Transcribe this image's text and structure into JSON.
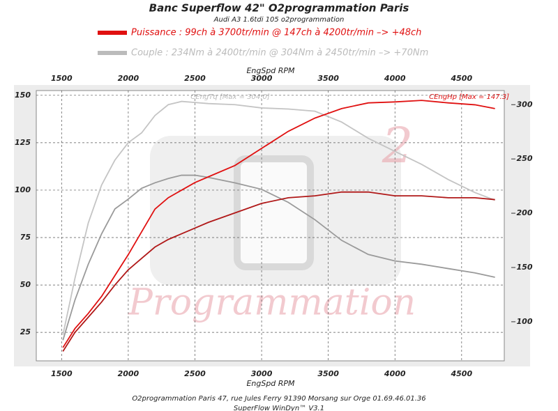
{
  "chart_data": {
    "type": "line",
    "title": "Banc Superflow 42\" O2programmation Paris",
    "subtitle": "Audi A3 1.6tdi 105 o2programmation",
    "legend": [
      {
        "text": "Puissance : 99ch à 3700tr/min @ 147ch à 4200tr/min  –> +48ch",
        "color": "#e01010"
      },
      {
        "text": "Couple :  234Nm à 2400tr/min @ 304Nm à 2450tr/min –> +70Nm",
        "color": "#bbbbbb"
      }
    ],
    "x_label": "EngSpd RPM",
    "annotations": [
      "CEngHp [Max = 147.3]",
      "CEngTq [Max = 304.0]"
    ],
    "watermark": "Programmation",
    "watermark_logo": "2",
    "footer": [
      "O2programmation Paris 47, rue Jules Ferry 91390 Morsang sur Orge 01.69.46.01.36",
      "SuperFlow WinDyn™ V3.1"
    ],
    "x": [
      1510,
      1600,
      1700,
      1800,
      1900,
      2000,
      2100,
      2200,
      2300,
      2400,
      2500,
      2600,
      2800,
      3000,
      3200,
      3400,
      3600,
      3800,
      4000,
      4200,
      4400,
      4600,
      4750
    ],
    "series": [
      {
        "color": "#e01010",
        "axis": "y",
        "values": [
          17,
          27,
          35,
          44,
          55,
          66,
          78,
          90,
          96,
          100,
          104,
          107,
          113,
          122,
          131,
          138,
          143,
          146,
          146.5,
          147.3,
          146,
          145,
          143
        ]
      },
      {
        "color": "#b01818",
        "axis": "y",
        "values": [
          15,
          25,
          33,
          41,
          50,
          58,
          64,
          70,
          74,
          77,
          80,
          83,
          88,
          93,
          96,
          97,
          99,
          99,
          97,
          97,
          96,
          96,
          95
        ]
      },
      {
        "color": "#c4c4c4",
        "axis": "y2",
        "values": [
          88,
          140,
          191,
          226,
          249,
          265,
          274,
          290,
          300,
          303,
          302,
          301,
          300,
          297,
          296,
          294,
          284,
          269,
          257,
          245,
          231,
          219,
          212
        ]
      },
      {
        "color": "#9a9a9a",
        "axis": "y2",
        "values": [
          83,
          120,
          153,
          181,
          204,
          213,
          223,
          228,
          232,
          235,
          235,
          233,
          228,
          222,
          210,
          194,
          175,
          162,
          156,
          153,
          149,
          145,
          141
        ]
      }
    ],
    "xlim": [
      1310,
      4820
    ],
    "xticks": [
      1500,
      2000,
      2500,
      3000,
      3500,
      4000,
      4500
    ],
    "ylim": [
      10,
      152.5
    ],
    "yticks": [
      25,
      50,
      75,
      100,
      125,
      150
    ],
    "y2lim": [
      64,
      313
    ],
    "y2ticks": [
      100,
      150,
      200,
      250,
      300
    ],
    "grid": true
  }
}
